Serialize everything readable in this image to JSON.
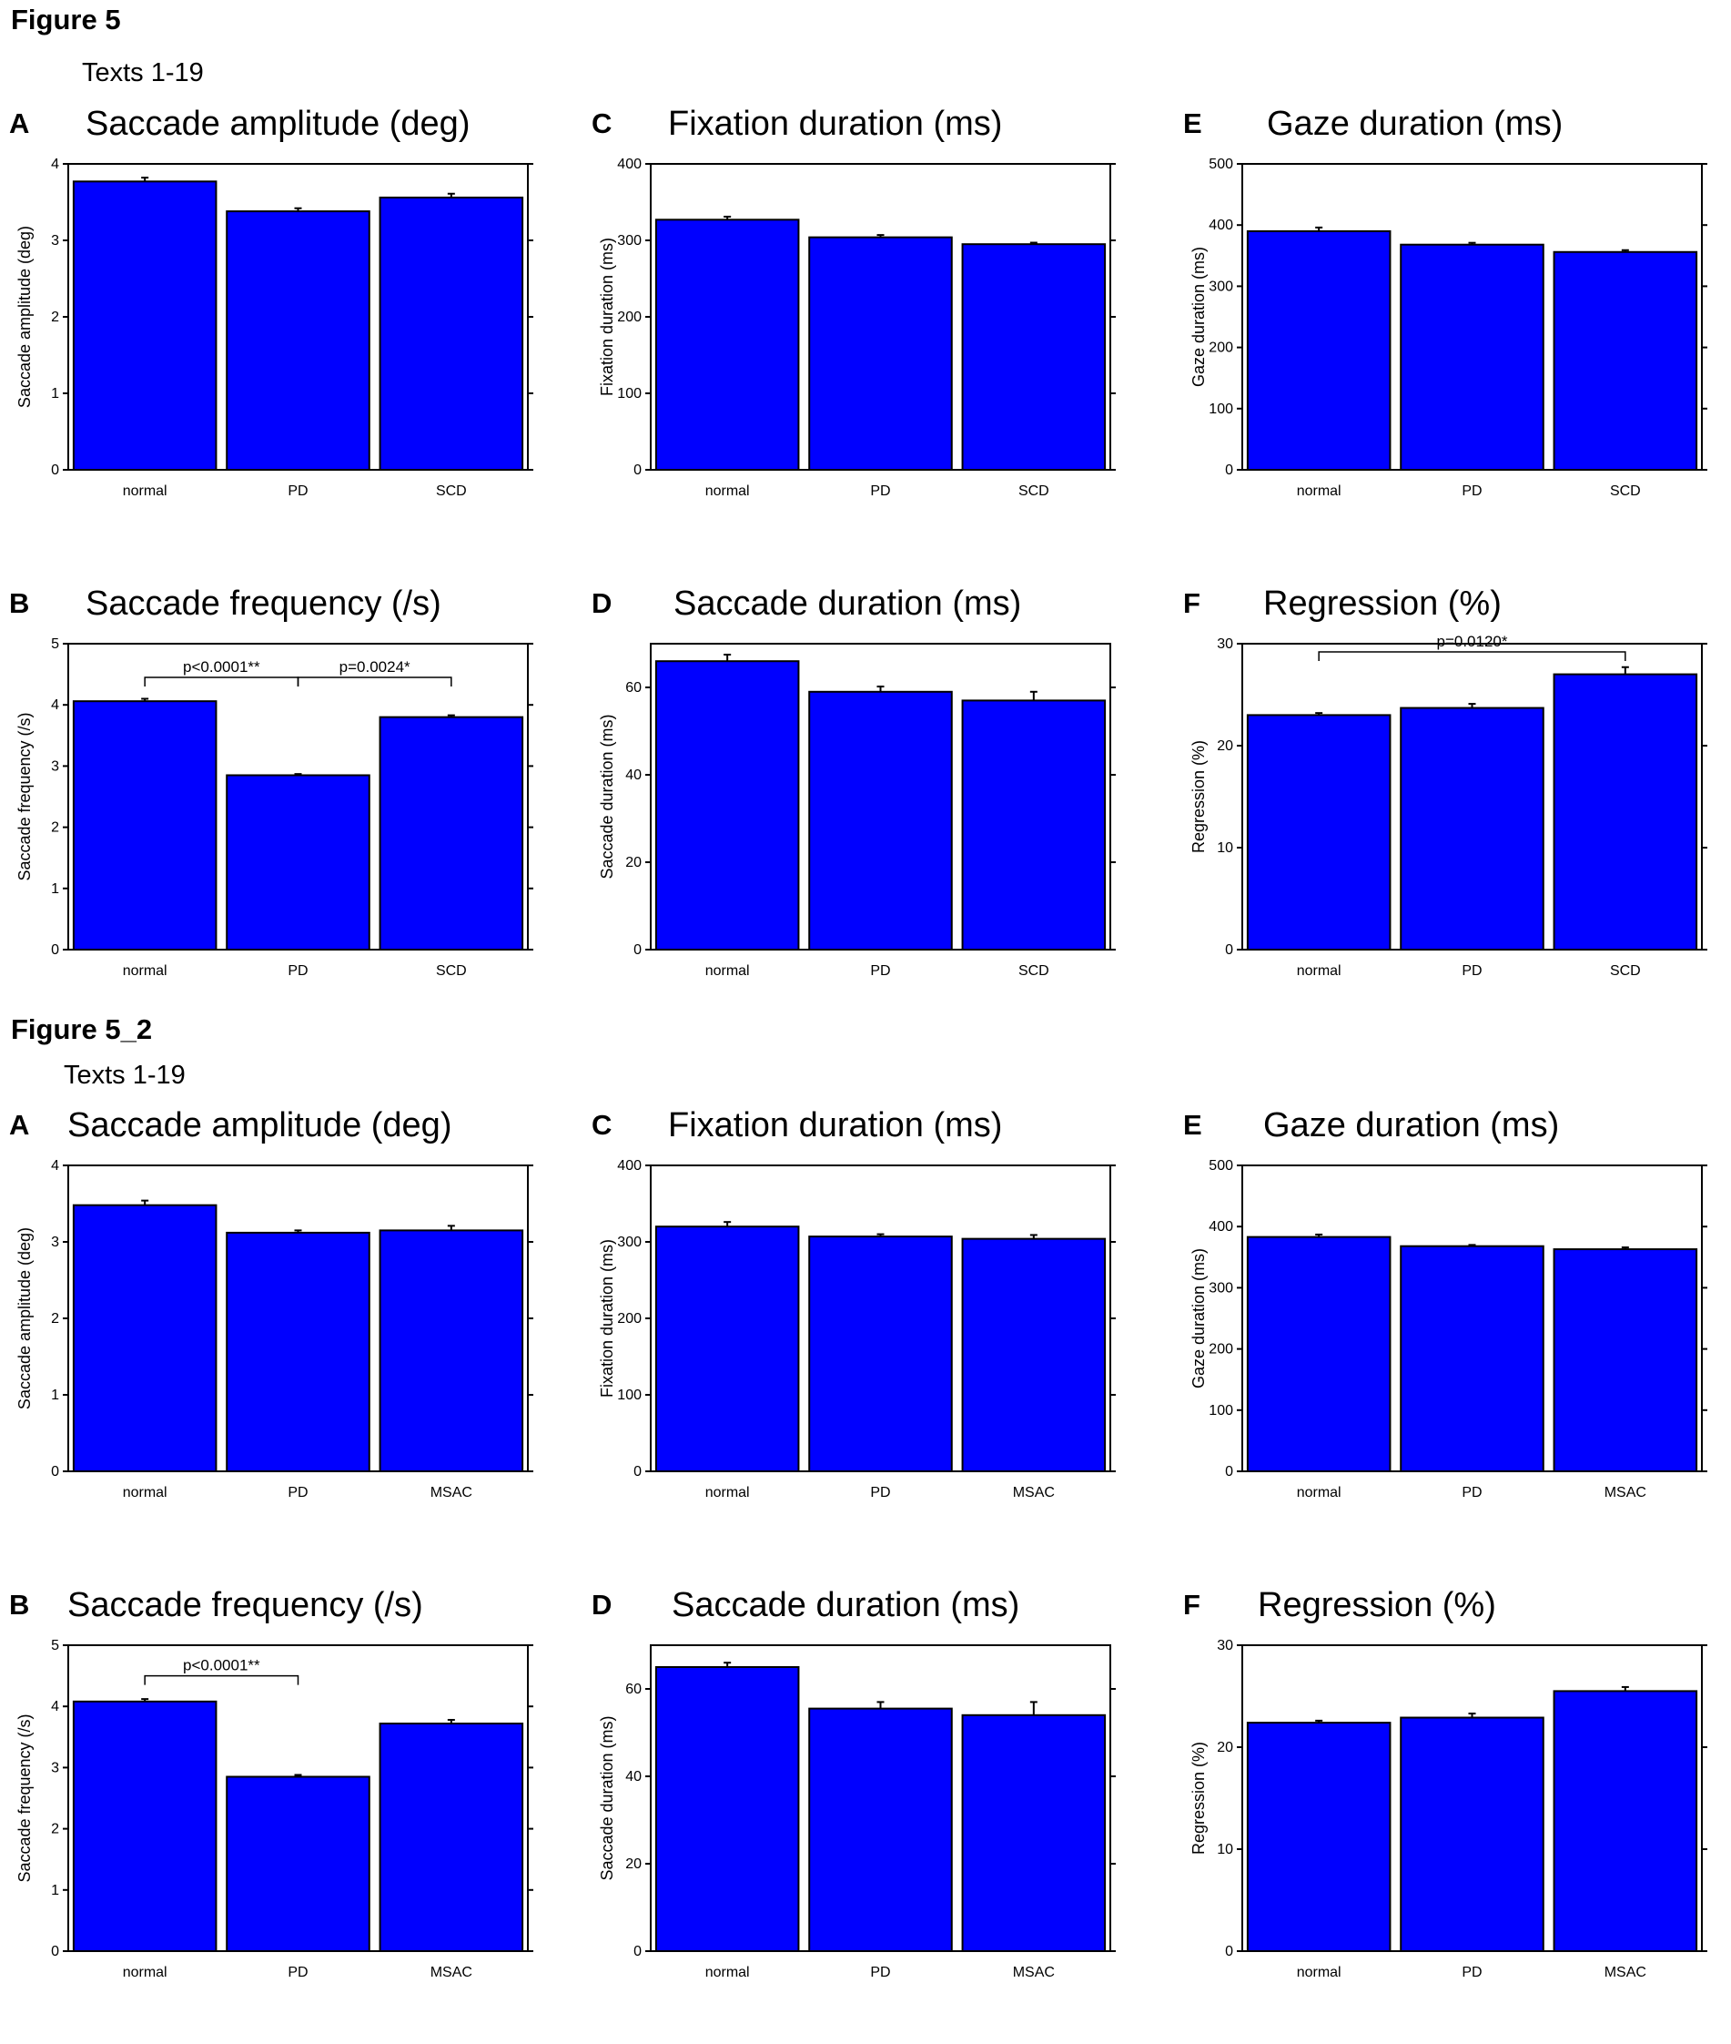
{
  "figures": [
    {
      "title": "Figure 5",
      "subtitle": "Texts 1-19"
    },
    {
      "title": "Figure 5_2",
      "subtitle": "Texts 1-19"
    }
  ],
  "colors": {
    "bar": "#0000ff",
    "axis": "#000000"
  },
  "chart_data": [
    {
      "type": "bar",
      "panel": "A",
      "title": "Saccade amplitude (deg)",
      "ylabel": "Saccade amplitude (deg)",
      "categories": [
        "normal",
        "PD",
        "SCD"
      ],
      "values": [
        3.77,
        3.38,
        3.56
      ],
      "errors": [
        0.05,
        0.04,
        0.05
      ],
      "ylim": [
        0,
        4
      ],
      "yticks": [
        0,
        1,
        2,
        3,
        4
      ],
      "annotations": []
    },
    {
      "type": "bar",
      "panel": "C",
      "title": "Fixation duration (ms)",
      "ylabel": "Fixation duration (ms)",
      "categories": [
        "normal",
        "PD",
        "SCD"
      ],
      "values": [
        327,
        304,
        295
      ],
      "errors": [
        4,
        3,
        2
      ],
      "ylim": [
        0,
        400
      ],
      "yticks": [
        0,
        100,
        200,
        300,
        400
      ],
      "annotations": []
    },
    {
      "type": "bar",
      "panel": "E",
      "title": "Gaze duration (ms)",
      "ylabel": "Gaze duration (ms)",
      "categories": [
        "normal",
        "PD",
        "SCD"
      ],
      "values": [
        390,
        368,
        356
      ],
      "errors": [
        6,
        3,
        3
      ],
      "ylim": [
        0,
        500
      ],
      "yticks": [
        0,
        100,
        200,
        300,
        400,
        500
      ],
      "annotations": []
    },
    {
      "type": "bar",
      "panel": "B",
      "title": "Saccade frequency (/s)",
      "ylabel": "Saccade frequency (/s)",
      "categories": [
        "normal",
        "PD",
        "SCD"
      ],
      "values": [
        4.06,
        2.85,
        3.8
      ],
      "errors": [
        0.04,
        0.02,
        0.03
      ],
      "ylim": [
        0,
        5
      ],
      "yticks": [
        0,
        1,
        2,
        3,
        4,
        5
      ],
      "annotations": [
        {
          "from": 0,
          "to": 1,
          "level": 4.45,
          "text": "p<0.0001**"
        },
        {
          "from": 1,
          "to": 2,
          "level": 4.45,
          "text": "p=0.0024*"
        }
      ]
    },
    {
      "type": "bar",
      "panel": "D",
      "title": "Saccade duration (ms)",
      "ylabel": "Saccade duration (ms)",
      "categories": [
        "normal",
        "PD",
        "SCD"
      ],
      "values": [
        66,
        59,
        57
      ],
      "errors": [
        1.5,
        1.2,
        2
      ],
      "ylim": [
        0,
        70
      ],
      "yticks": [
        0,
        20,
        40,
        60
      ],
      "annotations": []
    },
    {
      "type": "bar",
      "panel": "F",
      "title": "Regression (%)",
      "ylabel": "Regression (%)",
      "categories": [
        "normal",
        "PD",
        "SCD"
      ],
      "values": [
        23,
        23.7,
        27
      ],
      "errors": [
        0.2,
        0.4,
        0.7
      ],
      "ylim": [
        0,
        30
      ],
      "yticks": [
        0,
        10,
        20,
        30
      ],
      "annotations": [
        {
          "from": 0,
          "to": 2,
          "level": 29.2,
          "text": "p=0.0120*"
        }
      ]
    },
    {
      "type": "bar",
      "panel": "A",
      "title": "Saccade amplitude (deg)",
      "ylabel": "Saccade amplitude (deg)",
      "categories": [
        "normal",
        "PD",
        "MSAC"
      ],
      "values": [
        3.48,
        3.12,
        3.15
      ],
      "errors": [
        0.06,
        0.03,
        0.06
      ],
      "ylim": [
        0,
        4
      ],
      "yticks": [
        0,
        1,
        2,
        3,
        4
      ],
      "annotations": []
    },
    {
      "type": "bar",
      "panel": "C",
      "title": "Fixation duration (ms)",
      "ylabel": "Fixation duration (ms)",
      "categories": [
        "normal",
        "PD",
        "MSAC"
      ],
      "values": [
        320,
        307,
        304
      ],
      "errors": [
        6,
        3,
        5
      ],
      "ylim": [
        0,
        400
      ],
      "yticks": [
        0,
        100,
        200,
        300,
        400
      ],
      "annotations": []
    },
    {
      "type": "bar",
      "panel": "E",
      "title": "Gaze duration (ms)",
      "ylabel": "Gaze duration (ms)",
      "categories": [
        "normal",
        "PD",
        "MSAC"
      ],
      "values": [
        383,
        368,
        363
      ],
      "errors": [
        4,
        2,
        3
      ],
      "ylim": [
        0,
        500
      ],
      "yticks": [
        0,
        100,
        200,
        300,
        400,
        500
      ],
      "annotations": []
    },
    {
      "type": "bar",
      "panel": "B",
      "title": "Saccade frequency (/s)",
      "ylabel": "Saccade frequency (/s)",
      "categories": [
        "normal",
        "PD",
        "MSAC"
      ],
      "values": [
        4.08,
        2.85,
        3.72
      ],
      "errors": [
        0.04,
        0.03,
        0.06
      ],
      "ylim": [
        0,
        5
      ],
      "yticks": [
        0,
        1,
        2,
        3,
        4,
        5
      ],
      "annotations": [
        {
          "from": 0,
          "to": 1,
          "level": 4.5,
          "text": "p<0.0001**"
        }
      ]
    },
    {
      "type": "bar",
      "panel": "D",
      "title": "Saccade duration (ms)",
      "ylabel": "Saccade duration (ms)",
      "categories": [
        "normal",
        "PD",
        "MSAC"
      ],
      "values": [
        65,
        55.5,
        54
      ],
      "errors": [
        1,
        1.5,
        3
      ],
      "ylim": [
        0,
        70
      ],
      "yticks": [
        0,
        20,
        40,
        60
      ],
      "annotations": []
    },
    {
      "type": "bar",
      "panel": "F",
      "title": "Regression (%)",
      "ylabel": "Regression (%)",
      "categories": [
        "normal",
        "PD",
        "MSAC"
      ],
      "values": [
        22.4,
        22.9,
        25.5
      ],
      "errors": [
        0.2,
        0.4,
        0.4
      ],
      "ylim": [
        0,
        30
      ],
      "yticks": [
        0,
        10,
        20,
        30
      ],
      "annotations": []
    }
  ]
}
